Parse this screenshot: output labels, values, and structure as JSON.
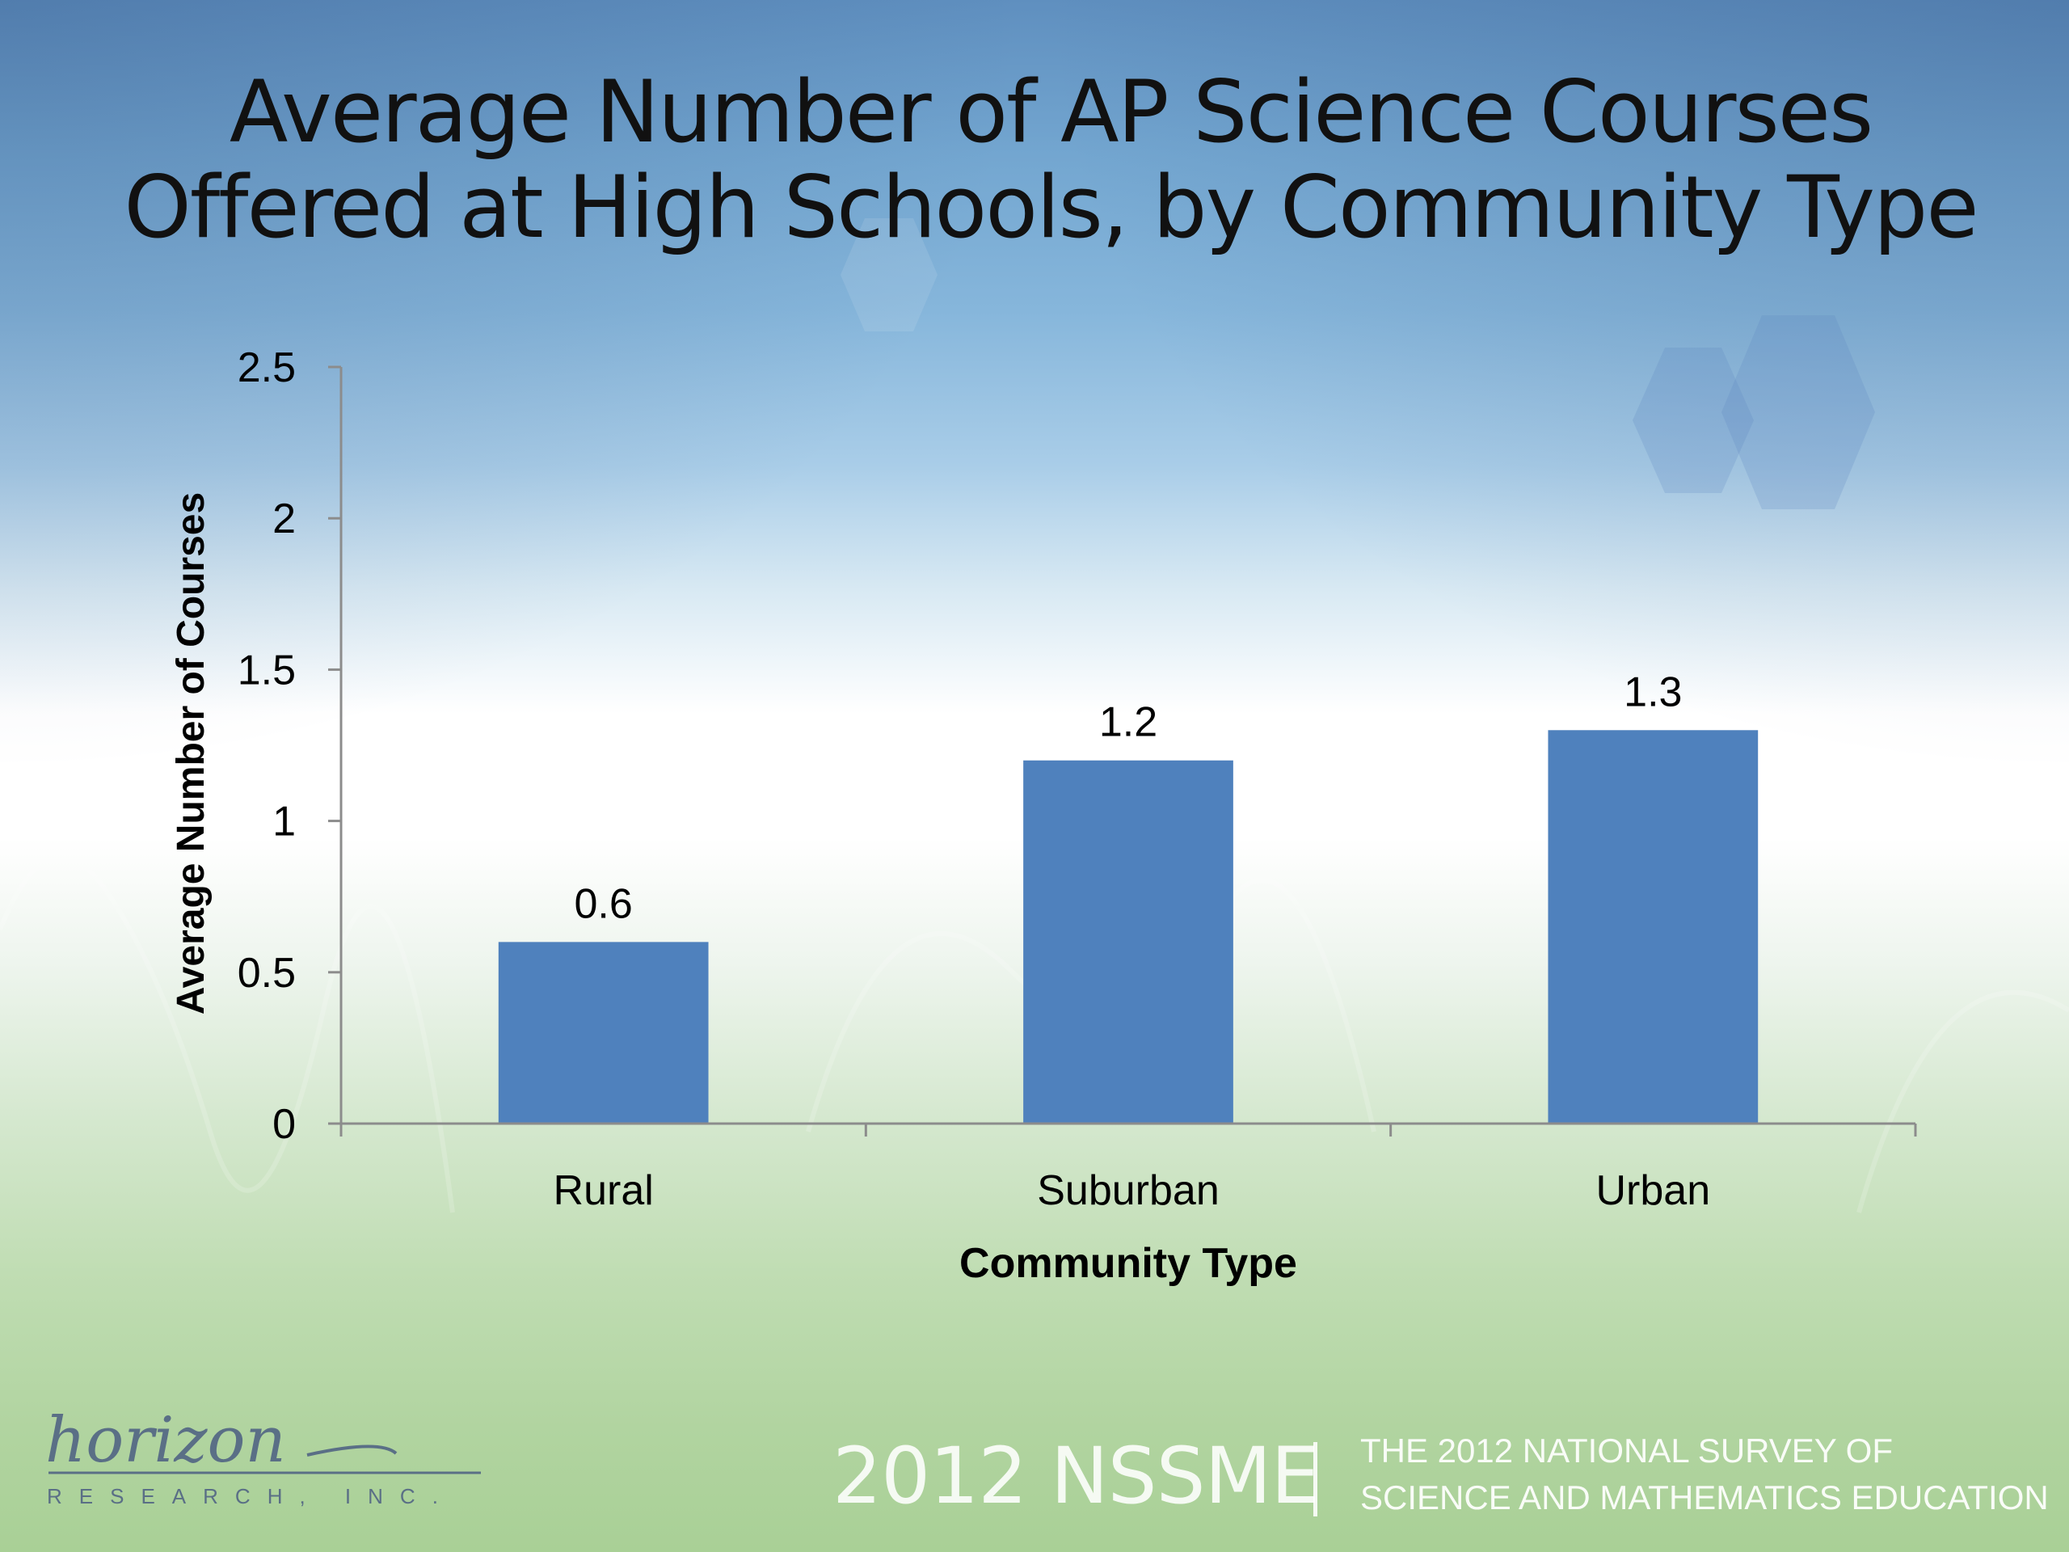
{
  "slide": {
    "title_line1": "Average Number of AP Science Courses",
    "title_line2": "Offered at High Schools, by Community Type"
  },
  "footer": {
    "nssme": "2012 NSSME",
    "survey_line1": "THE 2012 NATIONAL SURVEY OF",
    "survey_line2": "SCIENCE AND MATHEMATICS EDUCATION",
    "logo_word": "horizon",
    "logo_sub": "RESEARCH, INC."
  },
  "chart_data": {
    "type": "bar",
    "title": "Average Number of AP Science Courses Offered at High Schools, by Community Type",
    "categories": [
      "Rural",
      "Suburban",
      "Urban"
    ],
    "values": [
      0.6,
      1.2,
      1.3
    ],
    "data_labels": [
      "0.6",
      "1.2",
      "1.3"
    ],
    "xlabel": "Community Type",
    "ylabel": "Average Number of Courses",
    "ylim": [
      0,
      2.5
    ],
    "yticks": [
      0,
      0.5,
      1,
      1.5,
      2,
      2.5
    ],
    "ytick_labels": [
      "0",
      "0.5",
      "1",
      "1.5",
      "2",
      "2.5"
    ],
    "grid": false,
    "legend": "none",
    "bar_color": "#4f81bd"
  }
}
